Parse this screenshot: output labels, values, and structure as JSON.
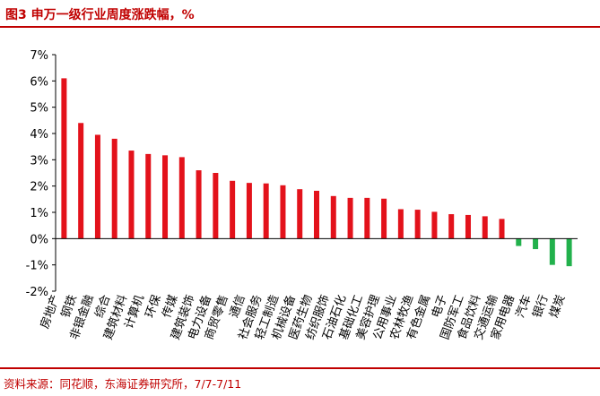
{
  "header": {
    "title": "图3  申万一级行业周度涨跌幅，%"
  },
  "footer": {
    "source": "资料来源：同花顺，东海证券研究所，7/7-7/11"
  },
  "colors": {
    "accent": "#c00000",
    "positive": "#e3121b",
    "negative": "#22b14c",
    "axis": "#000000"
  },
  "chart_data": {
    "type": "bar",
    "title": "申万一级行业周度涨跌幅，%",
    "xlabel": "",
    "ylabel": "",
    "ylim": [
      -2,
      7
    ],
    "yticks": [
      -2,
      -1,
      0,
      1,
      2,
      3,
      4,
      5,
      6,
      7
    ],
    "ytick_labels": [
      "-2%",
      "-1%",
      "0%",
      "1%",
      "2%",
      "3%",
      "4%",
      "5%",
      "6%",
      "7%"
    ],
    "grid": false,
    "legend": "none",
    "categories": [
      "房地产",
      "钢铁",
      "非银金融",
      "综合",
      "建筑材料",
      "计算机",
      "环保",
      "传媒",
      "建筑装饰",
      "电力设备",
      "商贸零售",
      "通信",
      "社会服务",
      "轻工制造",
      "机械设备",
      "医药生物",
      "纺织服饰",
      "石油石化",
      "基础化工",
      "美容护理",
      "公用事业",
      "农林牧渔",
      "有色金属",
      "电子",
      "国防军工",
      "食品饮料",
      "交通运输",
      "家用电器",
      "汽车",
      "银行",
      "煤炭"
    ],
    "values": [
      6.1,
      4.4,
      3.95,
      3.8,
      3.35,
      3.22,
      3.17,
      3.1,
      2.6,
      2.5,
      2.2,
      2.12,
      2.1,
      2.03,
      1.88,
      1.82,
      1.62,
      1.55,
      1.55,
      1.52,
      1.12,
      1.1,
      1.02,
      0.93,
      0.9,
      0.85,
      0.75,
      -0.28,
      -0.4,
      -1.0,
      -1.05
    ]
  }
}
